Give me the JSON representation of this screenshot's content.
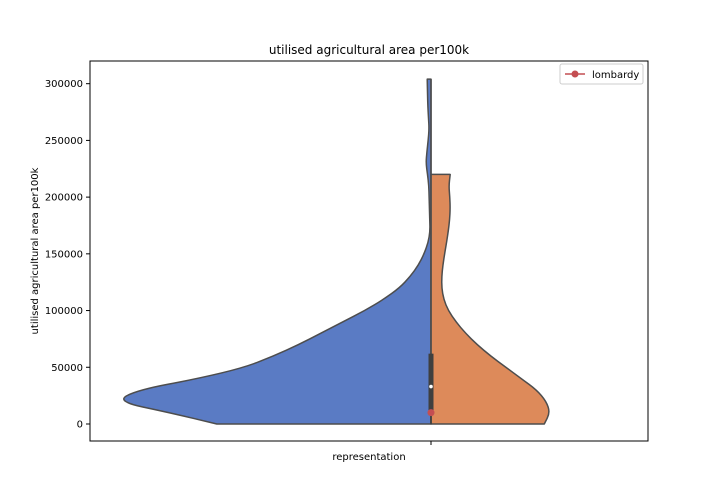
{
  "chart_data": {
    "type": "violin",
    "title": "utilised agricultural area per100k",
    "xlabel": "",
    "ylabel": "utilised agricultural area per100k",
    "categories": [
      "representation"
    ],
    "ylim": [
      -15000,
      320000
    ],
    "yticks": [
      0,
      50000,
      100000,
      150000,
      200000,
      250000,
      300000
    ],
    "ytick_labels": [
      "0",
      "50000",
      "100000",
      "150000",
      "200000",
      "250000",
      "300000"
    ],
    "grid": false,
    "legend_position": "top-right",
    "legend": [
      {
        "label": "lombardy",
        "color": "#c44e52",
        "marker": "circle-line"
      }
    ],
    "highlight_point": {
      "name": "lombardy",
      "y": 10000,
      "color": "#c44e52"
    },
    "split_violin": {
      "left": {
        "color": "#5a7bc4",
        "y_range": [
          0,
          304000
        ],
        "profile": [
          [
            0,
            0.68
          ],
          [
            10000,
            0.83
          ],
          [
            20000,
            1.0
          ],
          [
            30000,
            0.93
          ],
          [
            40000,
            0.74
          ],
          [
            50000,
            0.59
          ],
          [
            60000,
            0.5
          ],
          [
            70000,
            0.42
          ],
          [
            80000,
            0.35
          ],
          [
            90000,
            0.28
          ],
          [
            100000,
            0.21
          ],
          [
            110000,
            0.15
          ],
          [
            120000,
            0.1
          ],
          [
            130000,
            0.066
          ],
          [
            140000,
            0.04
          ],
          [
            150000,
            0.022
          ],
          [
            160000,
            0.009
          ],
          [
            170000,
            0.003
          ],
          [
            180000,
            0.004
          ],
          [
            190000,
            0.005
          ],
          [
            200000,
            0.006
          ],
          [
            210000,
            0.007
          ],
          [
            220000,
            0.011
          ],
          [
            230000,
            0.016
          ],
          [
            240000,
            0.013
          ],
          [
            250000,
            0.009
          ],
          [
            260000,
            0.006
          ],
          [
            270000,
            0.008
          ],
          [
            280000,
            0.01
          ],
          [
            290000,
            0.011
          ],
          [
            304000,
            0.012
          ]
        ]
      },
      "right": {
        "color": "#dd8a5a",
        "y_range": [
          0,
          220000
        ],
        "profile": [
          [
            0,
            0.59
          ],
          [
            10000,
            0.62
          ],
          [
            20000,
            0.6
          ],
          [
            30000,
            0.55
          ],
          [
            40000,
            0.47
          ],
          [
            50000,
            0.39
          ],
          [
            60000,
            0.31
          ],
          [
            70000,
            0.24
          ],
          [
            80000,
            0.18
          ],
          [
            90000,
            0.13
          ],
          [
            100000,
            0.09
          ],
          [
            110000,
            0.066
          ],
          [
            120000,
            0.056
          ],
          [
            130000,
            0.056
          ],
          [
            140000,
            0.062
          ],
          [
            150000,
            0.071
          ],
          [
            160000,
            0.081
          ],
          [
            170000,
            0.09
          ],
          [
            180000,
            0.097
          ],
          [
            190000,
            0.1
          ],
          [
            200000,
            0.098
          ],
          [
            210000,
            0.093
          ],
          [
            220000,
            0.1
          ]
        ]
      },
      "box": {
        "q1": 12000,
        "median": 33000,
        "q3": 62000,
        "whisker_low": 0,
        "whisker_high": 62000
      }
    }
  }
}
